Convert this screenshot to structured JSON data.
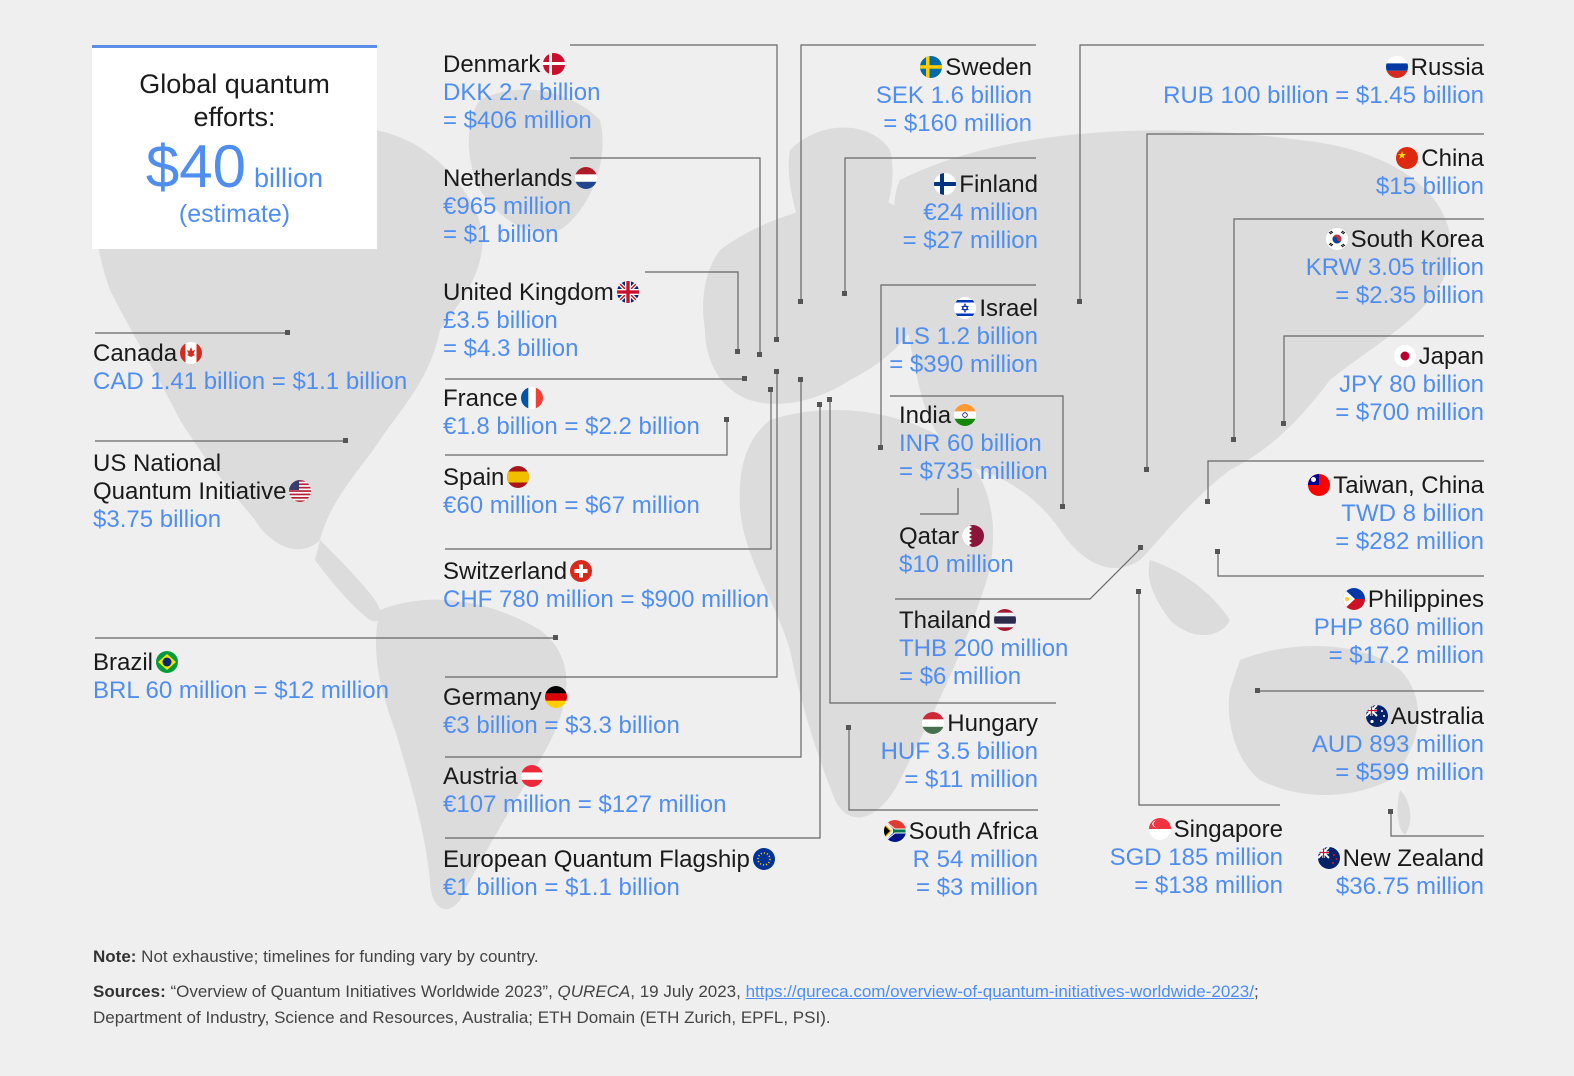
{
  "summary": {
    "title_line1": "Global quantum",
    "title_line2": "efforts:",
    "amount": "$40",
    "unit": "billion",
    "note": "(estimate)"
  },
  "entries": [
    {
      "id": "denmark",
      "name": "Denmark",
      "flag": "denmark",
      "lines": [
        "DKK 2.7 billion",
        "= $406 million"
      ]
    },
    {
      "id": "netherlands",
      "name": "Netherlands",
      "flag": "netherlands",
      "lines": [
        "€965 million",
        "= $1 billion"
      ]
    },
    {
      "id": "uk",
      "name": "United Kingdom",
      "flag": "uk",
      "lines": [
        "£3.5 billion",
        "= $4.3 billion"
      ]
    },
    {
      "id": "france",
      "name": "France",
      "flag": "france",
      "lines": [
        "€1.8 billion = $2.2 billion"
      ]
    },
    {
      "id": "spain",
      "name": "Spain",
      "flag": "spain",
      "lines": [
        "€60 million = $67 million"
      ]
    },
    {
      "id": "switzerland",
      "name": "Switzerland",
      "flag": "switzerland",
      "lines": [
        "CHF 780 million = $900 million"
      ]
    },
    {
      "id": "germany",
      "name": "Germany",
      "flag": "germany",
      "lines": [
        "€3 billion = $3.3 billion"
      ]
    },
    {
      "id": "austria",
      "name": "Austria",
      "flag": "austria",
      "lines": [
        "€107 million = $127 million"
      ]
    },
    {
      "id": "eu",
      "name": "European Quantum Flagship",
      "flag": "eu",
      "lines": [
        "€1 billion = $1.1 billion"
      ]
    },
    {
      "id": "canada",
      "name": "Canada",
      "flag": "canada",
      "lines": [
        "CAD 1.41 billion = $1.1 billion"
      ]
    },
    {
      "id": "us",
      "name": "US National",
      "name2": "Quantum Initiative",
      "flag": "us",
      "lines": [
        "$3.75 billion"
      ]
    },
    {
      "id": "brazil",
      "name": "Brazil",
      "flag": "brazil",
      "lines": [
        "BRL 60 million = $12 million"
      ]
    },
    {
      "id": "sweden",
      "name": "Sweden",
      "flag": "sweden",
      "lines": [
        "SEK 1.6 billion",
        "= $160 million"
      ]
    },
    {
      "id": "finland",
      "name": "Finland",
      "flag": "finland",
      "lines": [
        "€24 million",
        "= $27 million"
      ]
    },
    {
      "id": "israel",
      "name": "Israel",
      "flag": "israel",
      "lines": [
        "ILS 1.2 billion",
        "= $390 million"
      ]
    },
    {
      "id": "india",
      "name": "India",
      "flag": "india",
      "lines": [
        "INR 60 billion",
        "= $735 million"
      ]
    },
    {
      "id": "qatar",
      "name": "Qatar",
      "flag": "qatar",
      "lines": [
        "$10 million"
      ]
    },
    {
      "id": "thailand",
      "name": "Thailand",
      "flag": "thailand",
      "lines": [
        "THB 200 million",
        "= $6 million"
      ]
    },
    {
      "id": "hungary",
      "name": "Hungary",
      "flag": "hungary",
      "lines": [
        "HUF 3.5 billion",
        "= $11 million"
      ]
    },
    {
      "id": "south_africa",
      "name": "South Africa",
      "flag": "south_africa",
      "lines": [
        "R 54 million",
        "= $3 million"
      ]
    },
    {
      "id": "singapore",
      "name": "Singapore",
      "flag": "singapore",
      "lines": [
        "SGD 185 million",
        "= $138 million"
      ]
    },
    {
      "id": "russia",
      "name": "Russia",
      "flag": "russia",
      "lines": [
        "RUB 100 billion = $1.45 billion"
      ]
    },
    {
      "id": "china",
      "name": "China",
      "flag": "china",
      "lines": [
        "$15 billion"
      ]
    },
    {
      "id": "south_korea",
      "name": "South Korea",
      "flag": "south_korea",
      "lines": [
        "KRW 3.05 trillion",
        "= $2.35 billion"
      ]
    },
    {
      "id": "japan",
      "name": "Japan",
      "flag": "japan",
      "lines": [
        "JPY 80 billion",
        "= $700 million"
      ]
    },
    {
      "id": "taiwan",
      "name": "Taiwan, China",
      "flag": "taiwan",
      "lines": [
        "TWD 8 billion",
        "= $282 million"
      ]
    },
    {
      "id": "philippines",
      "name": "Philippines",
      "flag": "philippines",
      "lines": [
        "PHP 860 million",
        "= $17.2 million"
      ]
    },
    {
      "id": "australia",
      "name": "Australia",
      "flag": "australia",
      "lines": [
        "AUD 893 million",
        "= $599 million"
      ]
    },
    {
      "id": "new_zealand",
      "name": "New Zealand",
      "flag": "new_zealand",
      "lines": [
        "$36.75 million"
      ]
    }
  ],
  "footer": {
    "note_label": "Note:",
    "note_text": " Not exhaustive; timelines for funding vary by country.",
    "sources_label": "Sources:",
    "sources_text1": " “Overview of Quantum Initiatives Worldwide 2023”, ",
    "sources_italic": "QURECA",
    "sources_text2": ", 19 July 2023, ",
    "sources_link": "https://qureca.com/overview-of-quantum-initiatives-worldwide-2023/",
    "sources_text3": ";",
    "sources_line2": "Department of Industry, Science and Resources, Australia; ETH Domain (ETH Zurich, EPFL, PSI)."
  },
  "colors": {
    "accent": "#4f8ef0",
    "land": "#dedede",
    "background": "#efefef",
    "leader": "#555555"
  }
}
